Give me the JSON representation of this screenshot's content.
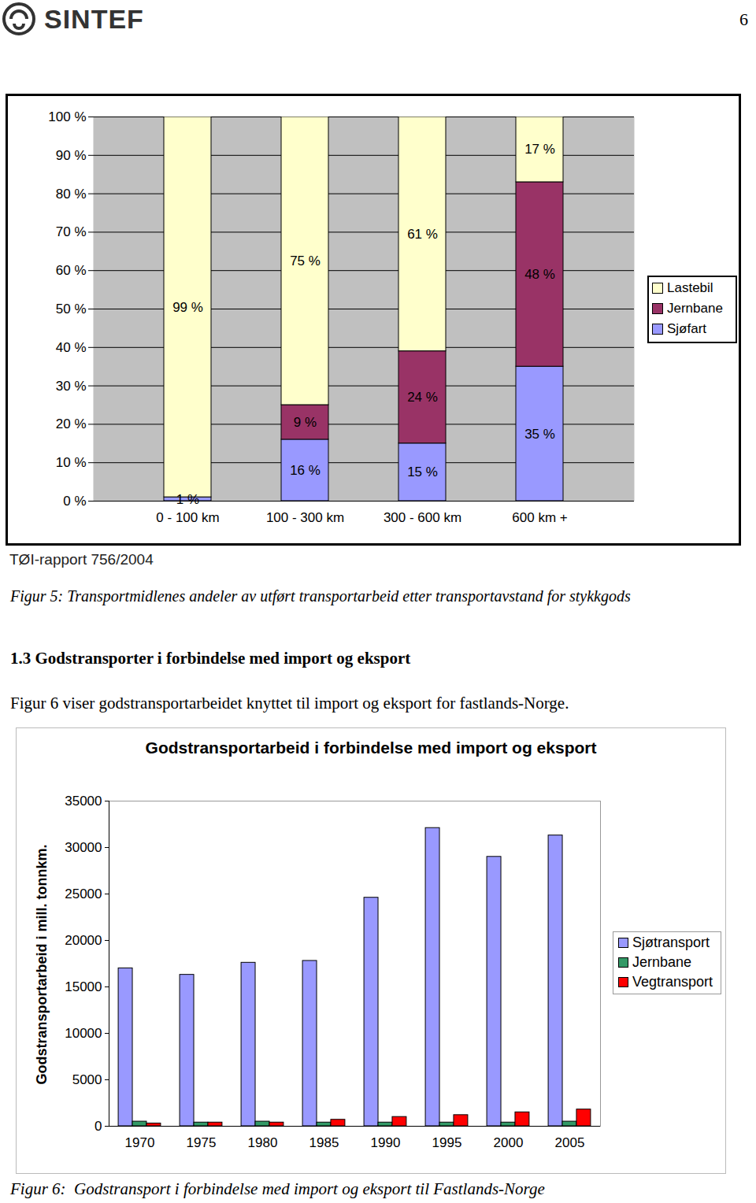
{
  "header": {
    "logo": "SINTEF",
    "page_number": "6"
  },
  "chart_data": [
    {
      "type": "bar",
      "stacked": true,
      "data_labels": true,
      "grid": true,
      "legend": "right",
      "categories": [
        "0 - 100 km",
        "100 - 300 km",
        "300 - 600 km",
        "600 km +"
      ],
      "series": [
        {
          "name": "Lastebil",
          "color": "#FFFFCC",
          "values": [
            99,
            75,
            61,
            17
          ],
          "value_labels": [
            "99 %",
            "75 %",
            "61 %",
            "17 %"
          ]
        },
        {
          "name": "Jernbane",
          "color": "#993366",
          "values": [
            0,
            9,
            24,
            48
          ],
          "value_labels": [
            null,
            "9 %",
            "24 %",
            "48 %"
          ]
        },
        {
          "name": "Sjøfart",
          "color": "#9999FF",
          "values": [
            1,
            16,
            15,
            35
          ],
          "value_labels": [
            "1 %",
            "16 %",
            "15 %",
            "35 %"
          ]
        }
      ],
      "ylim": [
        0,
        100
      ],
      "yticks": [
        {
          "value": 0,
          "label": "0 %"
        },
        {
          "value": 10,
          "label": "10 %"
        },
        {
          "value": 20,
          "label": "20 %"
        },
        {
          "value": 30,
          "label": "30 %"
        },
        {
          "value": 40,
          "label": "40 %"
        },
        {
          "value": 50,
          "label": "50 %"
        },
        {
          "value": 60,
          "label": "60 %"
        },
        {
          "value": 70,
          "label": "70 %"
        },
        {
          "value": 80,
          "label": "80 %"
        },
        {
          "value": 90,
          "label": "90 %"
        },
        {
          "value": 100,
          "label": "100 %"
        }
      ],
      "source": "TØI-rapport 756/2004",
      "caption": "Figur 5: Transportmidlenes andeler av utført transportarbeid etter transportavstand for stykkgods"
    },
    {
      "type": "bar",
      "title": "Godstransportarbeid i forbindelse med import og eksport",
      "ylabel": "Godstransportarbeid i mill. tonnkm.",
      "grid": false,
      "legend": "right",
      "categories": [
        "1970",
        "1975",
        "1980",
        "1985",
        "1990",
        "1995",
        "2000",
        "2005"
      ],
      "series": [
        {
          "name": "Sjøtransport",
          "color": "#9999FF",
          "values": [
            17000,
            16300,
            17600,
            17800,
            24600,
            32100,
            29000,
            31300
          ]
        },
        {
          "name": "Jernbane",
          "color": "#339966",
          "values": [
            500,
            400,
            500,
            400,
            400,
            400,
            400,
            500
          ]
        },
        {
          "name": "Vegtransport",
          "color": "#FF0000",
          "values": [
            300,
            400,
            400,
            700,
            1000,
            1200,
            1500,
            1800
          ]
        }
      ],
      "ylim": [
        0,
        35000
      ],
      "yticks": [
        0,
        5000,
        10000,
        15000,
        20000,
        25000,
        30000,
        35000
      ],
      "caption": "Figur 6:  Godstransport i forbindelse med import og eksport til Fastlands-Norge"
    }
  ],
  "section": {
    "heading": "1.3 Godstransporter i forbindelse med import og eksport",
    "paragraph": "Figur 6 viser godstransportarbeidet knyttet til import og eksport for fastlands-Norge."
  }
}
